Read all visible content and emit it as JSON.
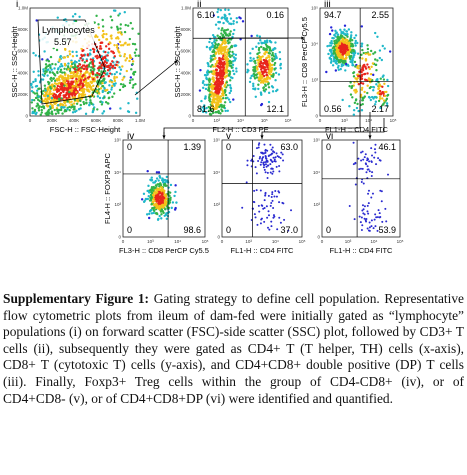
{
  "figure": {
    "panels": [
      {
        "label": "i",
        "gate": {
          "name": "Lymphocytes",
          "value": "5.57"
        },
        "ylabel": "SSC-H :: SSC-Height",
        "xlabel": "FSC-H :: FSC-Height",
        "xticks": [
          "0",
          "200K",
          "400K",
          "600K",
          "800K",
          "1.0M"
        ],
        "yticks": [
          "0",
          "200K",
          "400K",
          "600K",
          "800K",
          "1.0M"
        ]
      },
      {
        "label": "ii",
        "quadrants": {
          "tl": "6.10",
          "tr": "0.16",
          "bl": "81.6",
          "br": "12.1"
        },
        "ylabel": "SSC-H :: SSC-Height",
        "xlabel": "FL2-H :: CD3 PE",
        "xticks": [
          "0",
          "10³",
          "10⁴",
          "10⁵",
          "10⁶"
        ],
        "yticks": [
          "0",
          "200K",
          "400K",
          "600K",
          "800K",
          "1.0M"
        ]
      },
      {
        "label": "iii",
        "quadrants": {
          "tl": "94.7",
          "tr": "2.55",
          "bl": "0.56",
          "br": "2.17"
        },
        "ylabel": "FL3-H :: CD8 PerCP Cy5.5",
        "xlabel": "FL1-H :: CD4 FITC",
        "xticks": [
          "0",
          "10³",
          "10⁴",
          "10⁵"
        ],
        "yticks": [
          "0",
          "10³",
          "10⁴",
          "10⁵"
        ]
      },
      {
        "label": "iv",
        "quadrants": {
          "tl": "0",
          "tr": "1.39",
          "bl": "0",
          "br": "98.6"
        },
        "ylabel": "FL4-H :: FOXP3 APC",
        "xlabel": "FL3-H :: CD8 PerCP Cy5.5",
        "xticks": [
          "0",
          "10³",
          "10⁴",
          "10⁵"
        ],
        "yticks": [
          "0",
          "10³",
          "10⁴",
          "10⁵"
        ]
      },
      {
        "label": "v",
        "quadrants": {
          "tl": "0",
          "tr": "63.0",
          "bl": "0",
          "br": "37.0"
        },
        "xlabel": "FL1-H :: CD4 FITC",
        "xticks": [
          "0",
          "10³",
          "10⁴",
          "10⁵"
        ],
        "yticks": [
          "0",
          "10³",
          "10⁴",
          "10⁵"
        ]
      },
      {
        "label": "vi",
        "quadrants": {
          "tl": "0",
          "tr": "46.1",
          "bl": "0",
          "br": "53.9"
        },
        "xlabel": "FL1-H :: CD4 FITC",
        "xticks": [
          "0",
          "10³",
          "10⁴",
          "10⁵"
        ],
        "yticks": [
          "0",
          "10³",
          "10⁴",
          "10⁵"
        ]
      }
    ]
  },
  "caption": {
    "heading": "Supplementary Figure 1:",
    "text": "Gating strategy to define cell population. Representative flow cytometric plots from ileum of dam-fed were initially gated as “lymphocyte” populations (i) on forward scatter (FSC)-side scatter (SSC) plot, followed by CD3+ T cells (ii), subsequently they were gated as CD4+ T (T helper, TH) cells (x-axis), CD8+ T (cytotoxic T) cells (y-axis), and CD4+CD8+ double positive (DP) T cells (iii). Finally, Foxp3+ Treg cells within the group of CD4-CD8+ (iv), or of CD4+CD8- (v), or of CD4+CD8+DP (vi) were identified and quantified."
  }
}
